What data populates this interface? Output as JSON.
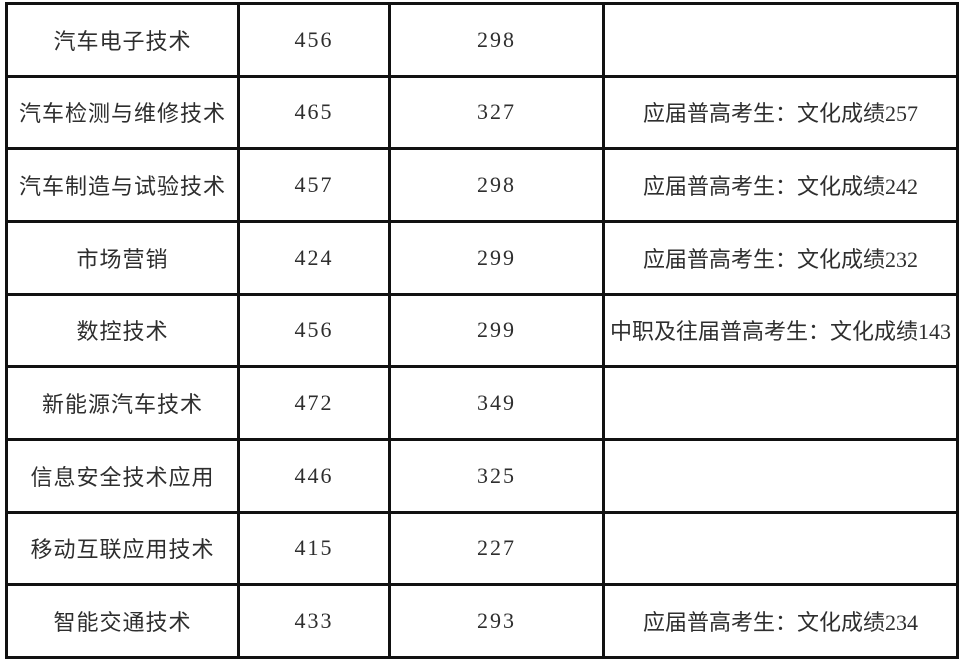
{
  "colors": {
    "border": "#111111",
    "text": "#2e2e2e",
    "background": "#ffffff"
  },
  "table": {
    "rows": [
      {
        "major": "汽车电子技术",
        "score1": "456",
        "score2": "298",
        "note": ""
      },
      {
        "major": "汽车检测与维修技术",
        "score1": "465",
        "score2": "327",
        "note": "应届普高考生：文化成绩257"
      },
      {
        "major": "汽车制造与试验技术",
        "score1": "457",
        "score2": "298",
        "note": "应届普高考生：文化成绩242"
      },
      {
        "major": "市场营销",
        "score1": "424",
        "score2": "299",
        "note": "应届普高考生：文化成绩232"
      },
      {
        "major": "数控技术",
        "score1": "456",
        "score2": "299",
        "note": "中职及往届普高考生：文化成绩143"
      },
      {
        "major": "新能源汽车技术",
        "score1": "472",
        "score2": "349",
        "note": ""
      },
      {
        "major": "信息安全技术应用",
        "score1": "446",
        "score2": "325",
        "note": ""
      },
      {
        "major": "移动互联应用技术",
        "score1": "415",
        "score2": "227",
        "note": ""
      },
      {
        "major": "智能交通技术",
        "score1": "433",
        "score2": "293",
        "note": "应届普高考生：文化成绩234"
      }
    ]
  }
}
